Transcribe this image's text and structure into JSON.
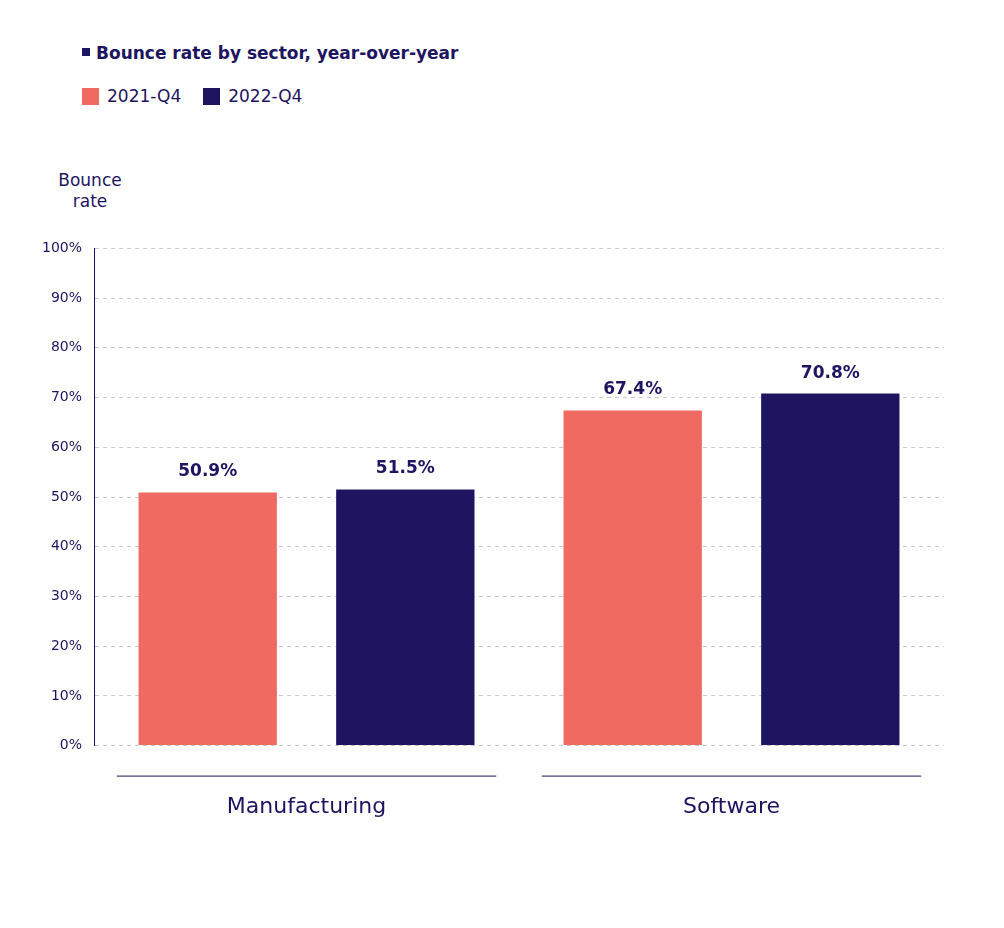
{
  "chart_data": {
    "type": "bar",
    "title": "Bounce rate by sector, year-over-year",
    "y_label": "Bounce rate",
    "categories": [
      "Manufacturing",
      "Software"
    ],
    "series": [
      {
        "name": "2021-Q4",
        "color": "#ef6a61",
        "values": [
          50.9,
          67.4
        ],
        "value_labels": [
          "50.9%",
          "67.4%"
        ]
      },
      {
        "name": "2022-Q4",
        "color": "#1d1560",
        "values": [
          51.5,
          70.8
        ],
        "value_labels": [
          "51.5%",
          "70.8%"
        ]
      }
    ],
    "ylim": [
      0,
      100
    ],
    "yticks": [
      {
        "value": 0,
        "label": "0%"
      },
      {
        "value": 10,
        "label": "10%"
      },
      {
        "value": 20,
        "label": "20%"
      },
      {
        "value": 30,
        "label": "30%"
      },
      {
        "value": 40,
        "label": "40%"
      },
      {
        "value": 50,
        "label": "50%"
      },
      {
        "value": 60,
        "label": "60%"
      },
      {
        "value": 70,
        "label": "70%"
      },
      {
        "value": 80,
        "label": "80%"
      },
      {
        "value": 90,
        "label": "90%"
      },
      {
        "value": 100,
        "label": "100%"
      }
    ],
    "grid": true,
    "legend": "top-left",
    "data_labels": true
  }
}
